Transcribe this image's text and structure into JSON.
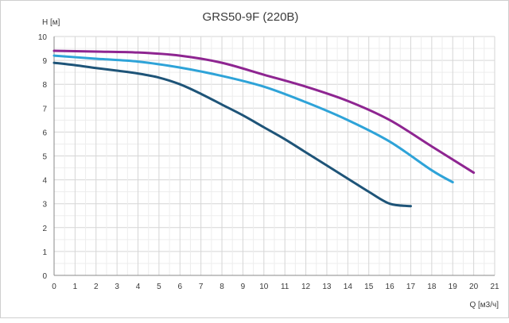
{
  "chart_data": {
    "type": "line",
    "title": "GRS50-9F (220В)",
    "xlabel": "Q [м3/ч]",
    "ylabel": "H [м]",
    "xlim": [
      0,
      21
    ],
    "ylim": [
      0,
      10
    ],
    "xticks": [
      "0",
      "1",
      "2",
      "3",
      "4",
      "5",
      "6",
      "7",
      "8",
      "9",
      "10",
      "11",
      "12",
      "13",
      "14",
      "15",
      "16",
      "17",
      "18",
      "19",
      "20",
      "21"
    ],
    "yticks": [
      "0",
      "1",
      "2",
      "3",
      "4",
      "5",
      "6",
      "7",
      "8",
      "9",
      "10"
    ],
    "grid": "both",
    "legend": "none",
    "series": [
      {
        "color": "#8e2591",
        "x": [
          0,
          2,
          4,
          6,
          8,
          10,
          12,
          14,
          16,
          18,
          20
        ],
        "y": [
          9.4,
          9.37,
          9.33,
          9.2,
          8.9,
          8.4,
          7.9,
          7.3,
          6.5,
          5.4,
          4.3
        ]
      },
      {
        "color": "#2ea3d8",
        "x": [
          0,
          2,
          4,
          6,
          8,
          10,
          12,
          14,
          16,
          18,
          19
        ],
        "y": [
          9.2,
          9.07,
          8.95,
          8.7,
          8.35,
          7.9,
          7.25,
          6.5,
          5.6,
          4.4,
          3.9
        ]
      },
      {
        "color": "#1e5478",
        "x": [
          0,
          1,
          2,
          3,
          4,
          5,
          6,
          7,
          8,
          9,
          10,
          11,
          12,
          13,
          14,
          15,
          16,
          17
        ],
        "y": [
          8.9,
          8.8,
          8.68,
          8.57,
          8.45,
          8.28,
          8.0,
          7.6,
          7.15,
          6.7,
          6.2,
          5.7,
          5.15,
          4.6,
          4.05,
          3.5,
          3.0,
          2.9
        ]
      }
    ]
  }
}
